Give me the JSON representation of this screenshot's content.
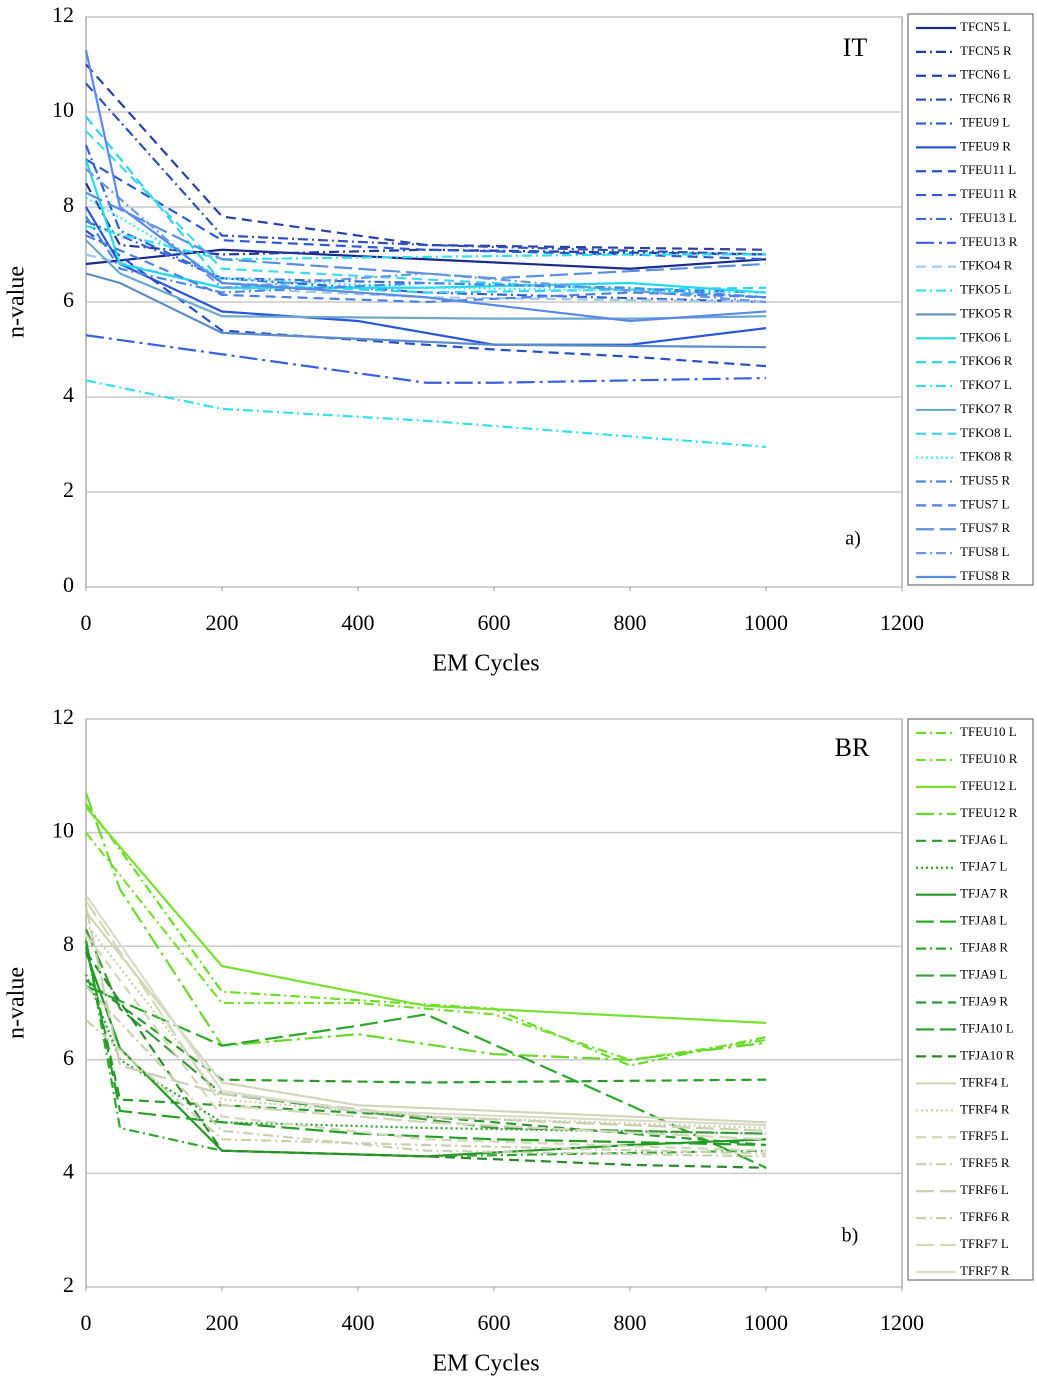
{
  "chart_data": [
    {
      "type": "line",
      "annotation": "IT",
      "panel_label": "a)",
      "x_label": "EM Cycles",
      "y_label": "n-value",
      "xlim": [
        0,
        1200
      ],
      "xticks": [
        0,
        200,
        400,
        600,
        800,
        1000,
        1200
      ],
      "ylim": [
        0,
        12
      ],
      "yticks": [
        0,
        2,
        4,
        6,
        8,
        10,
        12
      ],
      "grid": true,
      "legend": "right",
      "series": [
        {
          "name": "TFCN5 L",
          "color": "#1a2a8a",
          "dash": "solid",
          "x": [
            0,
            200,
            500,
            800,
            1000
          ],
          "values": [
            6.8,
            7.1,
            6.9,
            6.7,
            6.9
          ]
        },
        {
          "name": "TFCN5 R",
          "color": "#1f3a9e",
          "dash": "dashdot",
          "x": [
            0,
            50,
            200,
            500,
            1000
          ],
          "values": [
            8.5,
            7.2,
            7.0,
            7.1,
            7.0
          ]
        },
        {
          "name": "TFCN6 L",
          "color": "#2a3fa8",
          "dash": "dash",
          "x": [
            0,
            200,
            500,
            1000
          ],
          "values": [
            11.0,
            7.8,
            7.2,
            7.1
          ]
        },
        {
          "name": "TFCN6 R",
          "color": "#3050b8",
          "dash": "dashdot",
          "x": [
            0,
            200,
            500,
            1000
          ],
          "values": [
            10.6,
            7.4,
            7.2,
            7.0
          ]
        },
        {
          "name": "TFEU9 L",
          "color": "#3060d0",
          "dash": "dashdot",
          "x": [
            0,
            50,
            200,
            500,
            1000
          ],
          "values": [
            9.3,
            7.5,
            6.5,
            6.2,
            6.0
          ]
        },
        {
          "name": "TFEU9 R",
          "color": "#2a56d8",
          "dash": "solid",
          "x": [
            0,
            50,
            200,
            400,
            600,
            800,
            1000
          ],
          "values": [
            8.0,
            6.8,
            5.8,
            5.6,
            5.1,
            5.1,
            5.45
          ]
        },
        {
          "name": "TFEU11 L",
          "color": "#2850c8",
          "dash": "dash",
          "x": [
            0,
            200,
            400,
            600,
            800,
            1000
          ],
          "values": [
            7.5,
            5.4,
            5.2,
            5.0,
            4.85,
            4.65
          ]
        },
        {
          "name": "TFEU11 R",
          "color": "#2a5ad8",
          "dash": "dash",
          "x": [
            0,
            200,
            500,
            800,
            1000
          ],
          "values": [
            9.0,
            7.3,
            7.1,
            7.0,
            6.9
          ]
        },
        {
          "name": "TFEU13 L",
          "color": "#3a66d8",
          "dash": "dashdot",
          "x": [
            0,
            200,
            500,
            1000
          ],
          "values": [
            7.7,
            6.5,
            6.4,
            6.2
          ]
        },
        {
          "name": "TFEU13 R",
          "color": "#3a60e0",
          "dash": "longdashdot",
          "x": [
            0,
            200,
            500,
            600,
            1000
          ],
          "values": [
            5.3,
            4.9,
            4.3,
            4.3,
            4.4
          ]
        },
        {
          "name": "TFKO4 R",
          "color": "#a0c8e8",
          "dash": "dash",
          "x": [
            0,
            200,
            500,
            1000
          ],
          "values": [
            7.0,
            6.3,
            6.1,
            6.0
          ]
        },
        {
          "name": "TFKO5 L",
          "color": "#33e0f0",
          "dash": "dashdot",
          "x": [
            0,
            200,
            500,
            1000
          ],
          "values": [
            4.35,
            3.75,
            3.5,
            2.95
          ]
        },
        {
          "name": "TFKO5 R",
          "color": "#5b8ec8",
          "dash": "solid",
          "x": [
            0,
            50,
            200,
            600,
            1000
          ],
          "values": [
            6.6,
            6.4,
            5.35,
            5.1,
            5.05
          ]
        },
        {
          "name": "TFKO6 L",
          "color": "#20d8f0",
          "dash": "solid",
          "x": [
            0,
            50,
            200,
            500,
            800,
            1000
          ],
          "values": [
            9.0,
            6.8,
            6.3,
            6.3,
            6.4,
            6.2
          ]
        },
        {
          "name": "TFKO6 R",
          "color": "#30d0f0",
          "dash": "dash",
          "x": [
            0,
            200,
            500,
            1000
          ],
          "values": [
            9.9,
            6.4,
            6.2,
            6.3
          ]
        },
        {
          "name": "TFKO7 L",
          "color": "#30e0f0",
          "dash": "dashdot",
          "x": [
            0,
            200,
            500,
            800,
            1000
          ],
          "values": [
            7.6,
            6.9,
            6.95,
            7.0,
            7.0
          ]
        },
        {
          "name": "TFKO7 R",
          "color": "#6aa8d0",
          "dash": "solid",
          "x": [
            0,
            50,
            200,
            600,
            800,
            1000
          ],
          "values": [
            7.3,
            6.6,
            5.7,
            5.65,
            5.65,
            5.7
          ]
        },
        {
          "name": "TFKO8 L",
          "color": "#40d8f0",
          "dash": "dash",
          "x": [
            0,
            200,
            600,
            1000
          ],
          "values": [
            9.6,
            6.7,
            6.4,
            6.1
          ]
        },
        {
          "name": "TFKO8 R",
          "color": "#40e8f8",
          "dash": "dot",
          "x": [
            0,
            200,
            500,
            1000
          ],
          "values": [
            8.2,
            6.5,
            6.3,
            6.2
          ]
        },
        {
          "name": "TFUS5 R",
          "color": "#4a88e8",
          "dash": "dashdot",
          "x": [
            0,
            50,
            200,
            500,
            800,
            1000
          ],
          "values": [
            7.8,
            6.7,
            6.2,
            6.4,
            6.3,
            6.1
          ]
        },
        {
          "name": "TFUS7 L",
          "color": "#4a80e8",
          "dash": "dash",
          "x": [
            0,
            200,
            500,
            800,
            1000
          ],
          "values": [
            7.4,
            6.15,
            6.0,
            6.2,
            6.1
          ]
        },
        {
          "name": "TFUS7 R",
          "color": "#5a90e0",
          "dash": "longdash",
          "x": [
            0,
            200,
            600,
            1000
          ],
          "values": [
            8.3,
            6.9,
            6.5,
            6.8
          ]
        },
        {
          "name": "TFUS8 L",
          "color": "#6a98e0",
          "dash": "dashdot",
          "x": [
            0,
            200,
            500,
            1000
          ],
          "values": [
            8.8,
            6.3,
            6.6,
            6.0
          ]
        },
        {
          "name": "TFUS8 R",
          "color": "#5a8ae8",
          "dash": "solid",
          "x": [
            0,
            50,
            200,
            500,
            800,
            1000
          ],
          "values": [
            11.3,
            8.0,
            6.4,
            6.1,
            5.6,
            5.8
          ]
        }
      ]
    },
    {
      "type": "line",
      "annotation": "BR",
      "panel_label": "b)",
      "x_label": "EM Cycles",
      "y_label": "n-value",
      "xlim": [
        0,
        1200
      ],
      "xticks": [
        0,
        200,
        400,
        600,
        800,
        1000,
        1200
      ],
      "ylim": [
        2,
        12
      ],
      "yticks": [
        2,
        4,
        6,
        8,
        10,
        12
      ],
      "grid": true,
      "legend": "right",
      "series": [
        {
          "name": "TFEU10 L",
          "color": "#66dd22",
          "dash": "dashdot",
          "x": [
            0,
            50,
            200,
            600,
            800,
            1000
          ],
          "values": [
            10.5,
            9.7,
            7.2,
            6.9,
            5.9,
            6.4
          ]
        },
        {
          "name": "TFEU10 R",
          "color": "#77dd33",
          "dash": "dashdot",
          "x": [
            0,
            200,
            400,
            600,
            800,
            1000
          ],
          "values": [
            10.0,
            7.0,
            7.0,
            6.8,
            6.0,
            6.35
          ]
        },
        {
          "name": "TFEU12 L",
          "color": "#77e030",
          "dash": "solid",
          "x": [
            0,
            200,
            500,
            1000
          ],
          "values": [
            10.45,
            7.65,
            6.95,
            6.65
          ]
        },
        {
          "name": "TFEU12 R",
          "color": "#6ad82a",
          "dash": "longdashdot",
          "x": [
            0,
            50,
            200,
            400,
            600,
            800,
            1000
          ],
          "values": [
            10.7,
            9.0,
            6.25,
            6.45,
            6.1,
            6.0,
            6.3
          ]
        },
        {
          "name": "TFJA6 L",
          "color": "#2a9a2a",
          "dash": "dash",
          "x": [
            0,
            50,
            200,
            500,
            1000
          ],
          "values": [
            8.0,
            5.3,
            5.2,
            5.0,
            4.5
          ]
        },
        {
          "name": "TFJA7 L",
          "color": "#2aa02a",
          "dash": "dot",
          "x": [
            0,
            50,
            200,
            500,
            1000
          ],
          "values": [
            7.5,
            6.0,
            4.9,
            4.8,
            4.7
          ]
        },
        {
          "name": "TFJA7 R",
          "color": "#229922",
          "dash": "solid",
          "x": [
            0,
            50,
            200,
            500,
            800,
            1000
          ],
          "values": [
            7.9,
            6.2,
            4.4,
            4.3,
            4.5,
            4.6
          ]
        },
        {
          "name": "TFJA8 L",
          "color": "#2aa82a",
          "dash": "longdash",
          "x": [
            0,
            200,
            400,
            500,
            800,
            1000
          ],
          "values": [
            7.3,
            6.25,
            6.6,
            6.8,
            5.2,
            4.1
          ]
        },
        {
          "name": "TFJA8 R",
          "color": "#30a830",
          "dash": "dashdot",
          "x": [
            0,
            50,
            200,
            500,
            1000
          ],
          "values": [
            8.1,
            4.8,
            4.4,
            4.3,
            4.4
          ]
        },
        {
          "name": "TFJA9 L",
          "color": "#3a9a3a",
          "dash": "longdash",
          "x": [
            0,
            50,
            200,
            600,
            1000
          ],
          "values": [
            8.3,
            6.9,
            5.4,
            4.8,
            4.7
          ]
        },
        {
          "name": "TFJA9 R",
          "color": "#2a9a2a",
          "dash": "dash",
          "x": [
            0,
            200,
            500,
            1000
          ],
          "values": [
            7.4,
            5.65,
            5.6,
            5.65
          ]
        },
        {
          "name": "TFJA10 L",
          "color": "#22a022",
          "dash": "longdash",
          "x": [
            0,
            50,
            200,
            400,
            600,
            1000
          ],
          "values": [
            8.1,
            5.1,
            4.9,
            4.7,
            4.6,
            4.5
          ]
        },
        {
          "name": "TFJA10 R",
          "color": "#2a8a2a",
          "dash": "dash",
          "x": [
            0,
            200,
            500,
            800,
            1000
          ],
          "values": [
            7.9,
            4.4,
            4.3,
            4.15,
            4.1
          ]
        },
        {
          "name": "TFRF4 L",
          "color": "#d0d8b8",
          "dash": "solid",
          "x": [
            0,
            200,
            400,
            1000
          ],
          "values": [
            8.6,
            5.6,
            5.2,
            4.9
          ]
        },
        {
          "name": "TFRF4 R",
          "color": "#c8d0a8",
          "dash": "dot",
          "x": [
            0,
            200,
            500,
            1000
          ],
          "values": [
            8.4,
            5.3,
            5.0,
            4.8
          ]
        },
        {
          "name": "TFRF5 L",
          "color": "#d0d8b8",
          "dash": "dash",
          "x": [
            0,
            200,
            500,
            1000
          ],
          "values": [
            8.2,
            5.0,
            4.6,
            4.4
          ]
        },
        {
          "name": "TFRF5 R",
          "color": "#c8d0b0",
          "dash": "dashdot",
          "x": [
            0,
            200,
            500,
            1000
          ],
          "values": [
            6.7,
            4.6,
            4.5,
            4.35
          ]
        },
        {
          "name": "TFRF6 L",
          "color": "#c8d0b0",
          "dash": "longdash",
          "x": [
            0,
            50,
            200,
            500,
            1000
          ],
          "values": [
            8.7,
            5.9,
            5.4,
            5.0,
            4.75
          ]
        },
        {
          "name": "TFRF6 R",
          "color": "#c8d0b0",
          "dash": "dashdot",
          "x": [
            0,
            200,
            500,
            1000
          ],
          "values": [
            7.3,
            4.75,
            4.4,
            4.3
          ]
        },
        {
          "name": "TFRF7 L",
          "color": "#d0d8b8",
          "dash": "longdash",
          "x": [
            0,
            200,
            500,
            1000
          ],
          "values": [
            8.8,
            5.2,
            4.9,
            4.6
          ]
        },
        {
          "name": "TFRF7 R",
          "color": "#d8dcc8",
          "dash": "solid",
          "x": [
            0,
            200,
            400,
            1000
          ],
          "values": [
            8.9,
            5.45,
            5.1,
            4.85
          ]
        }
      ]
    }
  ]
}
